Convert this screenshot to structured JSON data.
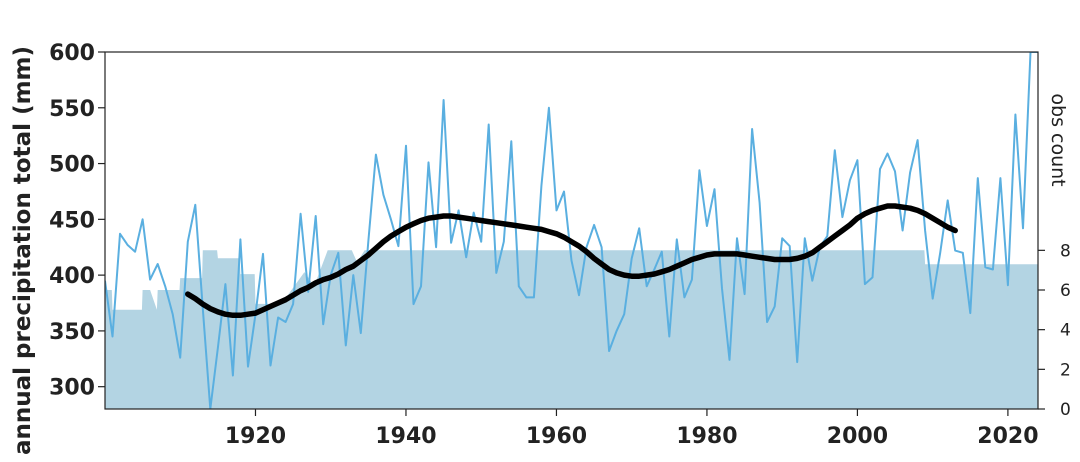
{
  "chart_data": {
    "type": "line",
    "ylabel": "annual precipitation total (mm)",
    "y2label": "obs count",
    "xlim": [
      1900,
      2024
    ],
    "ylim": [
      280,
      600
    ],
    "y2lim": [
      0,
      18
    ],
    "xticks": [
      1920,
      1940,
      1960,
      1980,
      2000,
      2020
    ],
    "yticks": [
      300,
      350,
      400,
      450,
      500,
      550,
      600
    ],
    "y2ticks": [
      0,
      2,
      4,
      6,
      8
    ],
    "grid": false,
    "colors": {
      "annual": "#5aafe0",
      "smoothed": "#000000",
      "obs": "#b3d4e3"
    },
    "series": [
      {
        "type": "line",
        "x": [
          1900,
          1901,
          1902,
          1903,
          1904,
          1905,
          1906,
          1907,
          1908,
          1909,
          1910,
          1911,
          1912,
          1913,
          1914,
          1915,
          1916,
          1917,
          1918,
          1919,
          1920,
          1921,
          1922,
          1923,
          1924,
          1925,
          1926,
          1927,
          1928,
          1929,
          1930,
          1931,
          1932,
          1933,
          1934,
          1935,
          1936,
          1937,
          1938,
          1939,
          1940,
          1941,
          1942,
          1943,
          1944,
          1945,
          1946,
          1947,
          1948,
          1949,
          1950,
          1951,
          1952,
          1953,
          1954,
          1955,
          1956,
          1957,
          1958,
          1959,
          1960,
          1961,
          1962,
          1963,
          1964,
          1965,
          1966,
          1967,
          1968,
          1969,
          1970,
          1971,
          1972,
          1973,
          1974,
          1975,
          1976,
          1977,
          1978,
          1979,
          1980,
          1981,
          1982,
          1983,
          1984,
          1985,
          1986,
          1987,
          1988,
          1989,
          1990,
          1991,
          1992,
          1993,
          1994,
          1995,
          1996,
          1997,
          1998,
          1999,
          2000,
          2001,
          2002,
          2003,
          2004,
          2005,
          2006,
          2007,
          2008,
          2009,
          2010,
          2011,
          2012,
          2013,
          2014,
          2015,
          2016,
          2017,
          2018,
          2019,
          2020,
          2021,
          2022,
          2023,
          2024
        ],
        "y": [
          395,
          345,
          437,
          427,
          421,
          450,
          396,
          410,
          390,
          365,
          326,
          430,
          463,
          370,
          280,
          335,
          392,
          310,
          432,
          318,
          365,
          419,
          319,
          362,
          358,
          374,
          455,
          385,
          453,
          356,
          400,
          420,
          337,
          400,
          348,
          430,
          508,
          472,
          450,
          426,
          516,
          374,
          390,
          501,
          425,
          557,
          429,
          458,
          416,
          456,
          430,
          535,
          402,
          430,
          520,
          390,
          380,
          380,
          480,
          550,
          458,
          475,
          413,
          382,
          425,
          445,
          425,
          332,
          350,
          365,
          415,
          442,
          390,
          405,
          421,
          345,
          432,
          380,
          396,
          494,
          444,
          477,
          388,
          324,
          433,
          383,
          531,
          465,
          358,
          372,
          433,
          426,
          322,
          433,
          395,
          425,
          435,
          512,
          452,
          485,
          503,
          392,
          398,
          495,
          509,
          493,
          440,
          492,
          521,
          440,
          379,
          420,
          467,
          422,
          420,
          366,
          487,
          407,
          405,
          487,
          391,
          544,
          442,
          600,
          600
        ]
      },
      {
        "type": "line",
        "x": [
          1911,
          1912,
          1913,
          1914,
          1915,
          1916,
          1917,
          1918,
          1919,
          1920,
          1921,
          1922,
          1923,
          1924,
          1925,
          1926,
          1927,
          1928,
          1929,
          1930,
          1931,
          1932,
          1933,
          1934,
          1935,
          1936,
          1937,
          1938,
          1939,
          1940,
          1941,
          1942,
          1943,
          1944,
          1945,
          1946,
          1947,
          1948,
          1949,
          1950,
          1951,
          1952,
          1953,
          1954,
          1955,
          1956,
          1957,
          1958,
          1959,
          1960,
          1961,
          1962,
          1963,
          1964,
          1965,
          1966,
          1967,
          1968,
          1969,
          1970,
          1971,
          1972,
          1973,
          1974,
          1975,
          1976,
          1977,
          1978,
          1979,
          1980,
          1981,
          1982,
          1983,
          1984,
          1985,
          1986,
          1987,
          1988,
          1989,
          1990,
          1991,
          1992,
          1993,
          1994,
          1995,
          1996,
          1997,
          1998,
          1999,
          2000,
          2001,
          2002,
          2003,
          2004,
          2005,
          2006,
          2007,
          2008,
          2009,
          2010,
          2011,
          2012,
          2013
        ],
        "y": [
          383,
          379,
          374,
          370,
          367,
          365,
          364,
          364,
          365,
          366,
          369,
          372,
          375,
          378,
          382,
          386,
          389,
          393,
          396,
          398,
          401,
          405,
          408,
          413,
          418,
          424,
          430,
          435,
          439,
          443,
          446,
          449,
          451,
          452,
          453,
          453,
          452,
          451,
          450,
          449,
          448,
          447,
          446,
          445,
          444,
          443,
          442,
          441,
          439,
          437,
          434,
          430,
          426,
          421,
          415,
          410,
          405,
          402,
          400,
          399,
          399,
          400,
          401,
          403,
          405,
          408,
          411,
          414,
          416,
          418,
          419,
          419,
          419,
          419,
          418,
          417,
          416,
          415,
          414,
          414,
          414,
          415,
          417,
          420,
          425,
          430,
          435,
          440,
          445,
          451,
          455,
          458,
          460,
          462,
          462,
          461,
          460,
          458,
          455,
          451,
          447,
          443,
          440
        ]
      }
    ],
    "obs_count": {
      "x": [
        1900,
        1900.9,
        1901,
        1904.9,
        1905,
        1906,
        1906.9,
        1907,
        1909.9,
        1910,
        1912.9,
        1913,
        1914.9,
        1915,
        1917.9,
        1918,
        1919.9,
        1920,
        1923.5,
        1924.4,
        1926.5,
        1927.8,
        1928.8,
        1929.6,
        1932.8,
        1933.5,
        1934.5,
        1935,
        1966.3,
        1969.9,
        1970,
        2008.9,
        2009,
        2010.9,
        2011,
        2024
      ],
      "y": [
        6,
        6,
        5,
        5,
        6,
        6,
        5,
        6,
        6,
        6.6,
        6.6,
        8,
        8,
        7.6,
        7.6,
        6.8,
        6.8,
        5.3,
        5.3,
        5.8,
        6.9,
        6.2,
        7.2,
        8,
        8,
        7.4,
        8,
        8,
        8,
        8,
        8,
        8,
        7.3,
        7.3,
        7.3,
        7.3
      ]
    }
  }
}
